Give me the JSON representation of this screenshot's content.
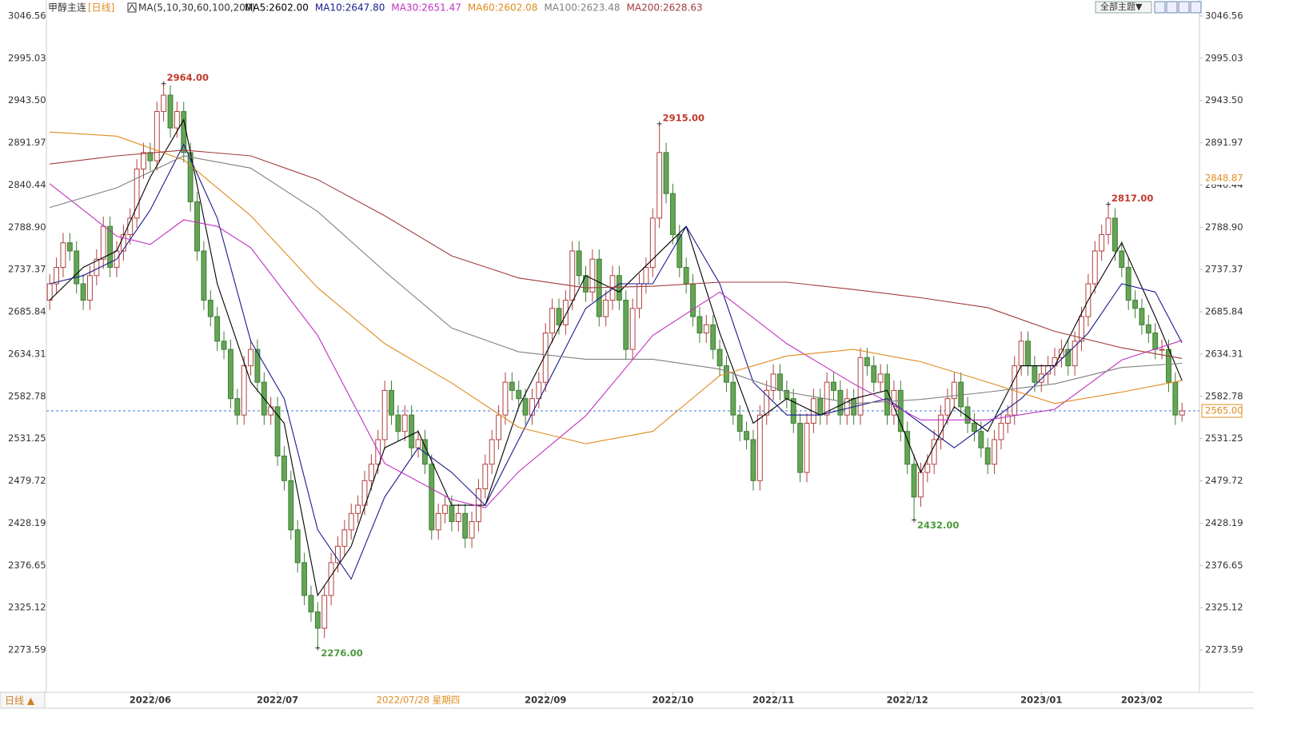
{
  "header": {
    "symbol": "甲醇主连",
    "period": "[日线]",
    "indicator": "MA(5,10,30,60,100,200)",
    "button": "全部主题▼"
  },
  "footer": {
    "period_button": "日线 ▲"
  },
  "chart_data": {
    "type": "candlestick",
    "up_color": "#b0413e",
    "down_color": "#64a556",
    "grid": false,
    "xlim": [
      -0.5,
      171.6
    ],
    "ylim": [
      2222,
      3066
    ],
    "xticks": [
      {
        "value": 15,
        "label": "2022/06"
      },
      {
        "value": 34,
        "label": "2022/07"
      },
      {
        "value": 74,
        "label": "2022/09"
      },
      {
        "value": 93,
        "label": "2022/10"
      },
      {
        "value": 108,
        "label": "2022/11"
      },
      {
        "value": 128,
        "label": "2022/12"
      },
      {
        "value": 148,
        "label": "2023/01"
      },
      {
        "value": 163,
        "label": "2023/02"
      }
    ],
    "yticks": [
      3046.56,
      2995.03,
      {
        "value": 2943.5,
        "label": "2943.50"
      },
      2891.97,
      2840.44,
      {
        "value": 2788.9,
        "label": "2788.90"
      },
      2737.37,
      2685.84,
      2634.31,
      2582.78,
      2531.25,
      2479.72,
      2428.19,
      2376.65,
      2325.12,
      2273.59
    ],
    "candles": [
      [
        2700,
        2732,
        2688,
        2720
      ],
      [
        2720,
        2752,
        2708,
        2740
      ],
      [
        2740,
        2782,
        2728,
        2770
      ],
      [
        2770,
        2782,
        2748,
        2760
      ],
      [
        2760,
        2772,
        2708,
        2720
      ],
      [
        2720,
        2732,
        2688,
        2700
      ],
      [
        2700,
        2742,
        2688,
        2730
      ],
      [
        2730,
        2762,
        2718,
        2750
      ],
      [
        2750,
        2802,
        2738,
        2790
      ],
      [
        2790,
        2802,
        2728,
        2740
      ],
      [
        2740,
        2772,
        2728,
        2760
      ],
      [
        2760,
        2792,
        2748,
        2780
      ],
      [
        2780,
        2812,
        2768,
        2800
      ],
      [
        2800,
        2872,
        2788,
        2860
      ],
      [
        2860,
        2892,
        2848,
        2880
      ],
      [
        2880,
        2892,
        2858,
        2870
      ],
      [
        2870,
        2942,
        2858,
        2930
      ],
      [
        2930,
        2964,
        2918,
        2950
      ],
      [
        2950,
        2962,
        2898,
        2910
      ],
      [
        2910,
        2942,
        2898,
        2930
      ],
      [
        2930,
        2942,
        2868,
        2880
      ],
      [
        2880,
        2892,
        2808,
        2820
      ],
      [
        2820,
        2832,
        2748,
        2760
      ],
      [
        2760,
        2772,
        2688,
        2700
      ],
      [
        2700,
        2712,
        2668,
        2680
      ],
      [
        2680,
        2692,
        2638,
        2650
      ],
      [
        2650,
        2662,
        2628,
        2640
      ],
      [
        2640,
        2652,
        2568,
        2580
      ],
      [
        2580,
        2592,
        2548,
        2560
      ],
      [
        2560,
        2632,
        2548,
        2620
      ],
      [
        2620,
        2652,
        2608,
        2640
      ],
      [
        2640,
        2652,
        2588,
        2600
      ],
      [
        2600,
        2612,
        2548,
        2560
      ],
      [
        2560,
        2582,
        2548,
        2570
      ],
      [
        2570,
        2582,
        2498,
        2510
      ],
      [
        2510,
        2522,
        2468,
        2480
      ],
      [
        2480,
        2492,
        2408,
        2420
      ],
      [
        2420,
        2432,
        2368,
        2380
      ],
      [
        2380,
        2392,
        2328,
        2340
      ],
      [
        2340,
        2352,
        2308,
        2320
      ],
      [
        2320,
        2332,
        2276,
        2300
      ],
      [
        2300,
        2352,
        2288,
        2340
      ],
      [
        2340,
        2392,
        2328,
        2380
      ],
      [
        2380,
        2412,
        2368,
        2400
      ],
      [
        2400,
        2432,
        2388,
        2420
      ],
      [
        2420,
        2452,
        2408,
        2440
      ],
      [
        2440,
        2462,
        2428,
        2450
      ],
      [
        2450,
        2492,
        2438,
        2480
      ],
      [
        2480,
        2512,
        2468,
        2500
      ],
      [
        2500,
        2542,
        2488,
        2530
      ],
      [
        2530,
        2602,
        2518,
        2590
      ],
      [
        2590,
        2602,
        2548,
        2560
      ],
      [
        2560,
        2572,
        2528,
        2540
      ],
      [
        2540,
        2572,
        2528,
        2560
      ],
      [
        2560,
        2572,
        2508,
        2520
      ],
      [
        2520,
        2542,
        2508,
        2530
      ],
      [
        2530,
        2542,
        2488,
        2500
      ],
      [
        2500,
        2512,
        2408,
        2420
      ],
      [
        2420,
        2452,
        2408,
        2440
      ],
      [
        2440,
        2462,
        2428,
        2450
      ],
      [
        2450,
        2462,
        2418,
        2430
      ],
      [
        2430,
        2452,
        2418,
        2440
      ],
      [
        2440,
        2452,
        2398,
        2410
      ],
      [
        2410,
        2442,
        2398,
        2430
      ],
      [
        2430,
        2482,
        2418,
        2470
      ],
      [
        2470,
        2512,
        2458,
        2500
      ],
      [
        2500,
        2542,
        2488,
        2530
      ],
      [
        2530,
        2572,
        2518,
        2560
      ],
      [
        2560,
        2612,
        2548,
        2600
      ],
      [
        2600,
        2612,
        2578,
        2590
      ],
      [
        2590,
        2602,
        2568,
        2580
      ],
      [
        2580,
        2592,
        2548,
        2560
      ],
      [
        2560,
        2592,
        2548,
        2580
      ],
      [
        2580,
        2612,
        2568,
        2600
      ],
      [
        2600,
        2672,
        2588,
        2660
      ],
      [
        2660,
        2702,
        2648,
        2690
      ],
      [
        2690,
        2702,
        2658,
        2670
      ],
      [
        2670,
        2712,
        2658,
        2700
      ],
      [
        2700,
        2772,
        2688,
        2760
      ],
      [
        2760,
        2772,
        2718,
        2730
      ],
      [
        2730,
        2742,
        2698,
        2710
      ],
      [
        2710,
        2762,
        2698,
        2750
      ],
      [
        2750,
        2762,
        2668,
        2680
      ],
      [
        2680,
        2712,
        2668,
        2700
      ],
      [
        2700,
        2742,
        2688,
        2730
      ],
      [
        2730,
        2742,
        2688,
        2700
      ],
      [
        2700,
        2712,
        2628,
        2640
      ],
      [
        2640,
        2702,
        2628,
        2690
      ],
      [
        2690,
        2732,
        2678,
        2720
      ],
      [
        2720,
        2752,
        2708,
        2740
      ],
      [
        2740,
        2812,
        2728,
        2800
      ],
      [
        2800,
        2915,
        2788,
        2880
      ],
      [
        2880,
        2892,
        2818,
        2830
      ],
      [
        2830,
        2842,
        2768,
        2780
      ],
      [
        2780,
        2792,
        2728,
        2740
      ],
      [
        2740,
        2752,
        2708,
        2720
      ],
      [
        2720,
        2732,
        2668,
        2680
      ],
      [
        2680,
        2692,
        2648,
        2660
      ],
      [
        2660,
        2682,
        2648,
        2670
      ],
      [
        2670,
        2682,
        2628,
        2640
      ],
      [
        2640,
        2652,
        2608,
        2620
      ],
      [
        2620,
        2632,
        2588,
        2600
      ],
      [
        2600,
        2612,
        2548,
        2560
      ],
      [
        2560,
        2572,
        2528,
        2540
      ],
      [
        2540,
        2552,
        2518,
        2530
      ],
      [
        2530,
        2542,
        2468,
        2480
      ],
      [
        2480,
        2572,
        2468,
        2560
      ],
      [
        2560,
        2602,
        2548,
        2590
      ],
      [
        2590,
        2622,
        2578,
        2610
      ],
      [
        2610,
        2622,
        2578,
        2590
      ],
      [
        2590,
        2602,
        2568,
        2580
      ],
      [
        2580,
        2592,
        2538,
        2550
      ],
      [
        2550,
        2562,
        2478,
        2490
      ],
      [
        2490,
        2562,
        2478,
        2550
      ],
      [
        2550,
        2592,
        2538,
        2580
      ],
      [
        2580,
        2592,
        2548,
        2560
      ],
      [
        2560,
        2612,
        2548,
        2600
      ],
      [
        2600,
        2612,
        2578,
        2590
      ],
      [
        2590,
        2602,
        2548,
        2560
      ],
      [
        2560,
        2592,
        2548,
        2580
      ],
      [
        2580,
        2592,
        2548,
        2560
      ],
      [
        2560,
        2642,
        2548,
        2630
      ],
      [
        2630,
        2642,
        2608,
        2620
      ],
      [
        2620,
        2632,
        2588,
        2600
      ],
      [
        2600,
        2622,
        2588,
        2610
      ],
      [
        2610,
        2622,
        2548,
        2560
      ],
      [
        2560,
        2602,
        2548,
        2590
      ],
      [
        2590,
        2602,
        2528,
        2540
      ],
      [
        2540,
        2552,
        2488,
        2500
      ],
      [
        2500,
        2512,
        2432,
        2460
      ],
      [
        2460,
        2502,
        2448,
        2490
      ],
      [
        2490,
        2512,
        2478,
        2500
      ],
      [
        2500,
        2542,
        2488,
        2530
      ],
      [
        2530,
        2572,
        2518,
        2560
      ],
      [
        2560,
        2592,
        2548,
        2580
      ],
      [
        2580,
        2612,
        2568,
        2600
      ],
      [
        2600,
        2612,
        2558,
        2570
      ],
      [
        2570,
        2582,
        2538,
        2550
      ],
      [
        2550,
        2562,
        2528,
        2540
      ],
      [
        2540,
        2552,
        2508,
        2520
      ],
      [
        2520,
        2532,
        2488,
        2500
      ],
      [
        2500,
        2542,
        2488,
        2530
      ],
      [
        2530,
        2562,
        2518,
        2550
      ],
      [
        2550,
        2572,
        2538,
        2560
      ],
      [
        2560,
        2632,
        2548,
        2620
      ],
      [
        2620,
        2662,
        2608,
        2650
      ],
      [
        2650,
        2662,
        2608,
        2620
      ],
      [
        2620,
        2632,
        2588,
        2600
      ],
      [
        2600,
        2622,
        2588,
        2610
      ],
      [
        2610,
        2632,
        2598,
        2620
      ],
      [
        2620,
        2642,
        2608,
        2630
      ],
      [
        2630,
        2652,
        2618,
        2640
      ],
      [
        2640,
        2652,
        2608,
        2620
      ],
      [
        2620,
        2662,
        2608,
        2650
      ],
      [
        2650,
        2692,
        2638,
        2680
      ],
      [
        2680,
        2732,
        2668,
        2720
      ],
      [
        2720,
        2772,
        2708,
        2760
      ],
      [
        2760,
        2792,
        2748,
        2780
      ],
      [
        2780,
        2817,
        2768,
        2800
      ],
      [
        2800,
        2812,
        2748,
        2760
      ],
      [
        2760,
        2772,
        2728,
        2740
      ],
      [
        2740,
        2752,
        2688,
        2700
      ],
      [
        2700,
        2712,
        2678,
        2690
      ],
      [
        2690,
        2702,
        2658,
        2670
      ],
      [
        2670,
        2682,
        2648,
        2660
      ],
      [
        2660,
        2672,
        2628,
        2640
      ],
      [
        2640,
        2652,
        2628,
        2640
      ],
      [
        2640,
        2652,
        2588,
        2600
      ],
      [
        2600,
        2612,
        2548,
        2560
      ],
      [
        2560,
        2575,
        2552,
        2565
      ]
    ],
    "series": [
      {
        "name": "MA5:2602.00",
        "color": "#000000",
        "x": [
          0,
          5,
          10,
          15,
          20,
          25,
          30,
          35,
          40,
          45,
          50,
          55,
          60,
          65,
          70,
          75,
          80,
          85,
          90,
          95,
          100,
          105,
          110,
          115,
          120,
          125,
          130,
          135,
          140,
          145,
          150,
          155,
          160,
          165,
          169
        ],
        "values": [
          2700,
          2740,
          2760,
          2850,
          2920,
          2720,
          2600,
          2550,
          2340,
          2400,
          2520,
          2540,
          2450,
          2450,
          2570,
          2650,
          2730,
          2710,
          2750,
          2790,
          2660,
          2550,
          2580,
          2560,
          2580,
          2590,
          2490,
          2570,
          2540,
          2620,
          2620,
          2700,
          2770,
          2680,
          2602
        ]
      },
      {
        "name": "MA10:2647.80",
        "color": "#1a1a8c",
        "x": [
          0,
          5,
          10,
          15,
          20,
          25,
          30,
          35,
          40,
          45,
          50,
          55,
          60,
          65,
          70,
          75,
          80,
          85,
          90,
          95,
          100,
          105,
          110,
          115,
          120,
          125,
          130,
          135,
          140,
          145,
          150,
          155,
          160,
          165,
          169
        ],
        "values": [
          2720,
          2730,
          2750,
          2810,
          2890,
          2800,
          2650,
          2580,
          2420,
          2360,
          2460,
          2520,
          2490,
          2450,
          2530,
          2610,
          2690,
          2720,
          2720,
          2790,
          2720,
          2600,
          2560,
          2560,
          2570,
          2580,
          2550,
          2520,
          2550,
          2580,
          2620,
          2660,
          2720,
          2710,
          2648
        ]
      },
      {
        "name": "MA30:2651.47",
        "color": "#c030c0",
        "x": [
          0,
          10,
          15,
          20,
          25,
          30,
          40,
          50,
          60,
          65,
          70,
          80,
          90,
          100,
          110,
          120,
          130,
          140,
          150,
          160,
          169
        ],
        "values": [
          2842,
          2778,
          2768,
          2798,
          2790,
          2764,
          2657,
          2501,
          2457,
          2447,
          2491,
          2559,
          2657,
          2710,
          2647,
          2598,
          2554,
          2554,
          2567,
          2627,
          2651
        ]
      },
      {
        "name": "MA60:2602.08",
        "color": "#e08a1e",
        "x": [
          0,
          10,
          20,
          30,
          40,
          50,
          60,
          70,
          80,
          90,
          100,
          110,
          120,
          130,
          140,
          150,
          160,
          169
        ],
        "values": [
          2905,
          2900,
          2871,
          2803,
          2715,
          2647,
          2599,
          2545,
          2525,
          2540,
          2608,
          2632,
          2640,
          2625,
          2600,
          2574,
          2588,
          2602
        ]
      },
      {
        "name": "MA100:2623.48",
        "color": "#808080",
        "x": [
          0,
          10,
          20,
          30,
          40,
          50,
          60,
          70,
          80,
          90,
          100,
          110,
          120,
          130,
          140,
          150,
          160,
          169
        ],
        "values": [
          2813,
          2837,
          2876,
          2861,
          2808,
          2735,
          2666,
          2637,
          2628,
          2628,
          2616,
          2588,
          2574,
          2579,
          2588,
          2598,
          2618,
          2623
        ]
      },
      {
        "name": "MA200:2628.63",
        "color": "#a03c3c",
        "x": [
          0,
          10,
          20,
          30,
          40,
          50,
          60,
          70,
          80,
          90,
          100,
          110,
          120,
          130,
          140,
          150,
          160,
          169
        ],
        "values": [
          2866,
          2876,
          2883,
          2876,
          2847,
          2803,
          2754,
          2727,
          2715,
          2717,
          2722,
          2722,
          2713,
          2703,
          2691,
          2662,
          2642,
          2629
        ]
      }
    ],
    "annotations": [
      {
        "x": 17,
        "value": 2964,
        "label": "2964.00",
        "kind": "high"
      },
      {
        "x": 91,
        "value": 2915,
        "label": "2915.00",
        "kind": "high"
      },
      {
        "x": 158,
        "value": 2817,
        "label": "2817.00",
        "kind": "high"
      },
      {
        "x": 40,
        "value": 2276,
        "label": "2276.00",
        "kind": "low"
      },
      {
        "x": 129,
        "value": 2432,
        "label": "2432.00",
        "kind": "low"
      }
    ],
    "last_price": {
      "value": 2565,
      "label": "2565.00"
    },
    "cursor_price": {
      "value": 2848.87,
      "label": "2848.87"
    },
    "cursor_date": {
      "x": 55,
      "label": "2022/07/28 星期四"
    }
  }
}
